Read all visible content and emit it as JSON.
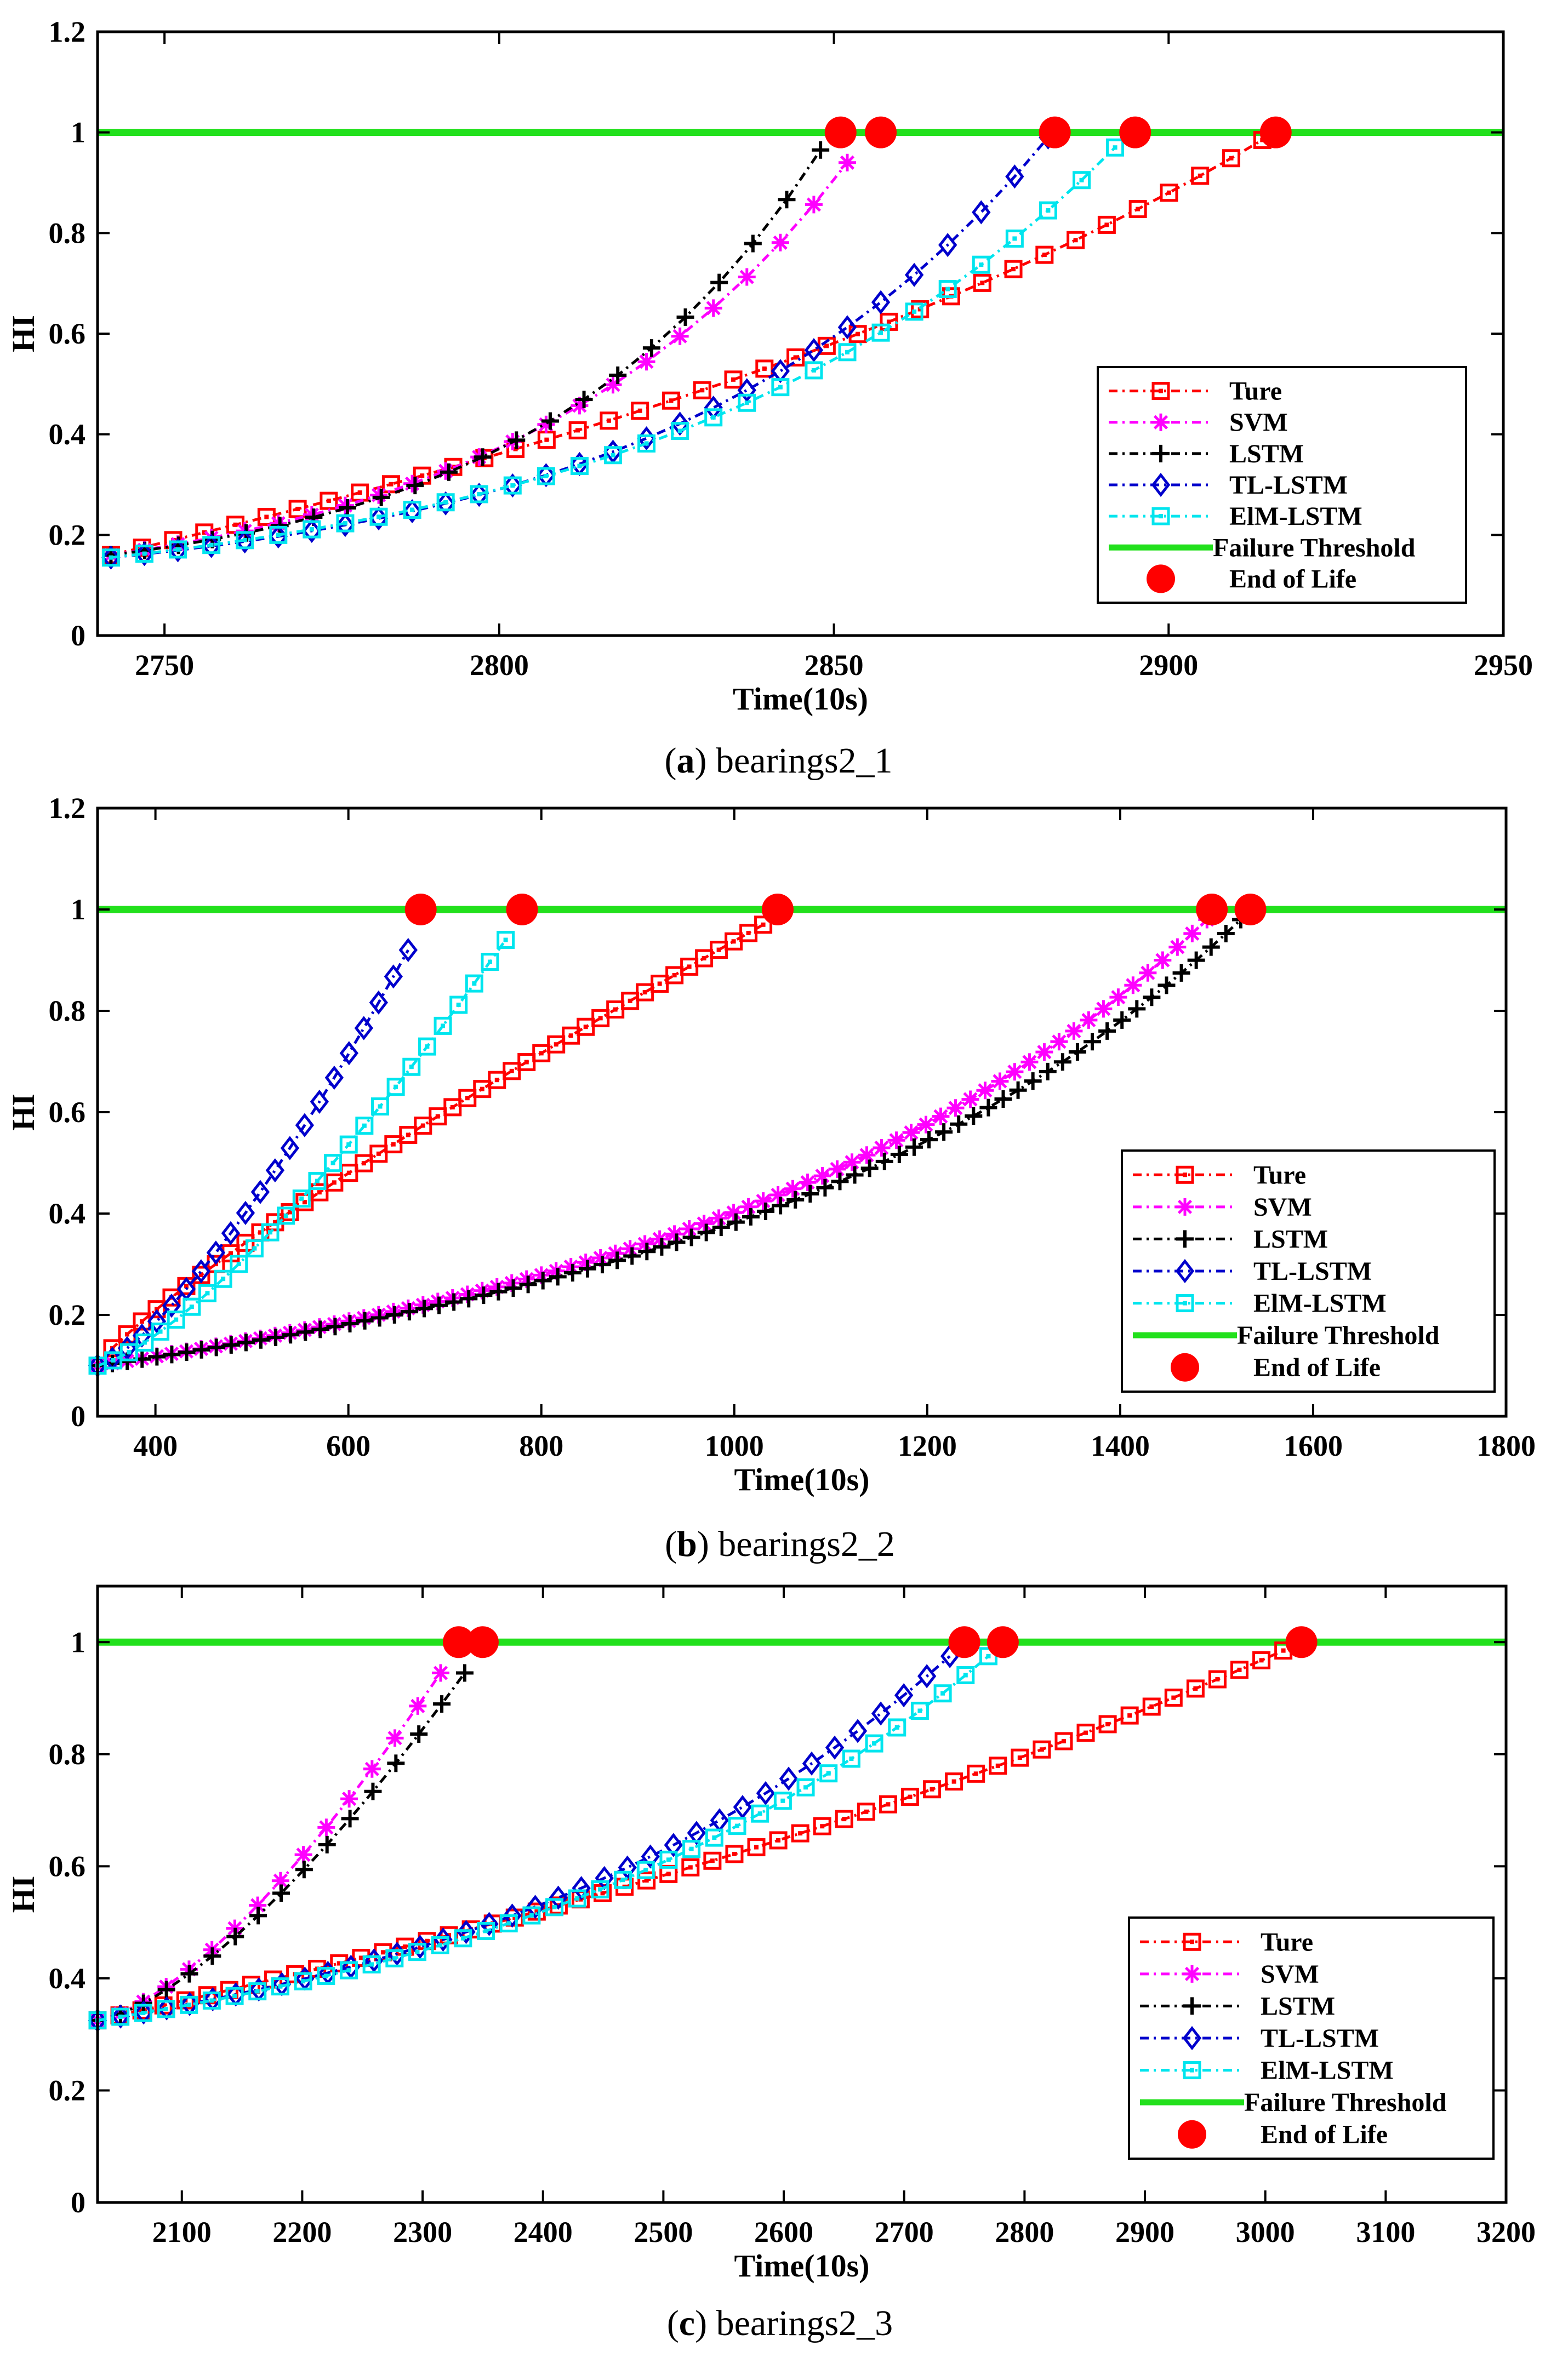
{
  "chart_data": [
    {
      "type": "line",
      "caption": {
        "letter": "a",
        "text": " bearings2_1"
      },
      "xlabel": "Time(10s)",
      "ylabel": "HI",
      "xlim": [
        2740,
        2950
      ],
      "ylim": [
        0,
        1.2
      ],
      "xticks": [
        "2750",
        "2800",
        "2850",
        "2900",
        "2950"
      ],
      "yticks": [
        "0",
        "0.2",
        "0.4",
        "0.6",
        "0.8",
        "1",
        "1.2"
      ],
      "failure_threshold": 1,
      "series": [
        {
          "name": "Ture",
          "color": "#ff0000",
          "marker": "square",
          "x0": 2742,
          "x1": 2914,
          "y0": 0.16,
          "y1": 0.985,
          "mode": "mix",
          "mix": 0.5,
          "k": 2,
          "n": 38
        },
        {
          "name": "SVM",
          "color": "#ff00ff",
          "marker": "star",
          "x0": 2742,
          "x1": 2852,
          "y0": 0.16,
          "y1": 0.94,
          "mode": "exp",
          "k": 2.2,
          "n": 23
        },
        {
          "name": "LSTM",
          "color": "#000000",
          "marker": "plus",
          "x0": 2742,
          "x1": 2848,
          "y0": 0.16,
          "y1": 0.965,
          "mode": "exp",
          "k": 2.5,
          "n": 22
        },
        {
          "name": "TL-LSTM",
          "color": "#0000cc",
          "marker": "diamond",
          "x0": 2742,
          "x1": 2882,
          "y0": 0.155,
          "y1": 0.99,
          "mode": "exp",
          "k": 2.5,
          "n": 29
        },
        {
          "name": "ElM-LSTM",
          "color": "#00e5ee",
          "marker": "square",
          "x0": 2742,
          "x1": 2892,
          "y0": 0.155,
          "y1": 0.97,
          "mode": "exp",
          "k": 2.2,
          "n": 31
        }
      ],
      "end_of_life": [
        {
          "x": 2851,
          "y": 1
        },
        {
          "x": 2857,
          "y": 1
        },
        {
          "x": 2883,
          "y": 1
        },
        {
          "x": 2895,
          "y": 1
        },
        {
          "x": 2916,
          "y": 1
        }
      ]
    },
    {
      "type": "line",
      "caption": {
        "letter": "b",
        "text": " bearings2_2"
      },
      "xlabel": "Time(10s)",
      "ylabel": "HI",
      "xlim": [
        340,
        1800
      ],
      "ylim": [
        0,
        1.2
      ],
      "xticks": [
        "400",
        "600",
        "800",
        "1000",
        "1200",
        "1400",
        "1600",
        "1800"
      ],
      "yticks": [
        "0",
        "0.2",
        "0.4",
        "0.6",
        "0.8",
        "1",
        "1.2"
      ],
      "failure_threshold": 1,
      "series": [
        {
          "name": "Ture",
          "color": "#ff0000",
          "marker": "square",
          "x0": 340,
          "x1": 1030,
          "y0": 0.1,
          "y1": 0.97,
          "mode": "pow",
          "k": 0.85,
          "n": 46
        },
        {
          "name": "SVM",
          "color": "#ff00ff",
          "marker": "star",
          "x0": 340,
          "x1": 1490,
          "y0": 0.1,
          "y1": 0.98,
          "mode": "mix",
          "mix": 0.2,
          "k": 2.5,
          "n": 76
        },
        {
          "name": "LSTM",
          "color": "#000000",
          "marker": "plus",
          "x0": 340,
          "x1": 1525,
          "y0": 0.1,
          "y1": 0.98,
          "mode": "mix",
          "mix": 0.2,
          "k": 2.6,
          "n": 78
        },
        {
          "name": "TL-LSTM",
          "color": "#0000cc",
          "marker": "diamond",
          "x0": 340,
          "x1": 662,
          "y0": 0.1,
          "y1": 0.92,
          "mode": "pow",
          "k": 1.35,
          "n": 22
        },
        {
          "name": "ElM-LSTM",
          "color": "#00e5ee",
          "marker": "square",
          "x0": 340,
          "x1": 763,
          "y0": 0.1,
          "y1": 0.94,
          "mode": "pow",
          "k": 1.35,
          "n": 27
        }
      ],
      "end_of_life": [
        {
          "x": 675,
          "y": 1
        },
        {
          "x": 780,
          "y": 1
        },
        {
          "x": 1045,
          "y": 1
        },
        {
          "x": 1495,
          "y": 1
        },
        {
          "x": 1535,
          "y": 1
        }
      ]
    },
    {
      "type": "line",
      "caption": {
        "letter": "c",
        "text": " bearings2_3"
      },
      "xlabel": "Time(10s)",
      "ylabel": "HI",
      "xlim": [
        2030,
        3200
      ],
      "ylim": [
        0,
        1.1
      ],
      "xticks": [
        "2100",
        "2200",
        "2300",
        "2400",
        "2500",
        "2600",
        "2700",
        "2800",
        "2900",
        "3000",
        "3100",
        "3200"
      ],
      "yticks": [
        "0",
        "0.2",
        "0.4",
        "0.6",
        "0.8",
        "1"
      ],
      "failure_threshold": 1,
      "series": [
        {
          "name": "Ture",
          "color": "#ff0000",
          "marker": "square",
          "x0": 2030,
          "x1": 3015,
          "y0": 0.325,
          "y1": 0.985,
          "mode": "mix",
          "mix": 0.45,
          "k": 1.3,
          "n": 55
        },
        {
          "name": "SVM",
          "color": "#ff00ff",
          "marker": "star",
          "x0": 2030,
          "x1": 2315,
          "y0": 0.325,
          "y1": 0.945,
          "mode": "pow",
          "k": 1.45,
          "n": 16
        },
        {
          "name": "LSTM",
          "color": "#000000",
          "marker": "plus",
          "x0": 2030,
          "x1": 2335,
          "y0": 0.325,
          "y1": 0.945,
          "mode": "pow",
          "k": 1.45,
          "n": 17
        },
        {
          "name": "TL-LSTM",
          "color": "#0000cc",
          "marker": "diamond",
          "x0": 2030,
          "x1": 2738,
          "y0": 0.325,
          "y1": 0.975,
          "mode": "exp",
          "k": 1.7,
          "n": 38
        },
        {
          "name": "ElM-LSTM",
          "color": "#00e5ee",
          "marker": "square",
          "x0": 2030,
          "x1": 2770,
          "y0": 0.325,
          "y1": 0.975,
          "mode": "exp",
          "k": 1.7,
          "n": 40
        }
      ],
      "end_of_life": [
        {
          "x": 2330,
          "y": 1
        },
        {
          "x": 2350,
          "y": 1
        },
        {
          "x": 2750,
          "y": 1
        },
        {
          "x": 2782,
          "y": 1
        },
        {
          "x": 3030,
          "y": 1
        }
      ]
    }
  ],
  "legend_extra": {
    "threshold_label": "Failure Threshold",
    "eol_label": "End of Life"
  }
}
